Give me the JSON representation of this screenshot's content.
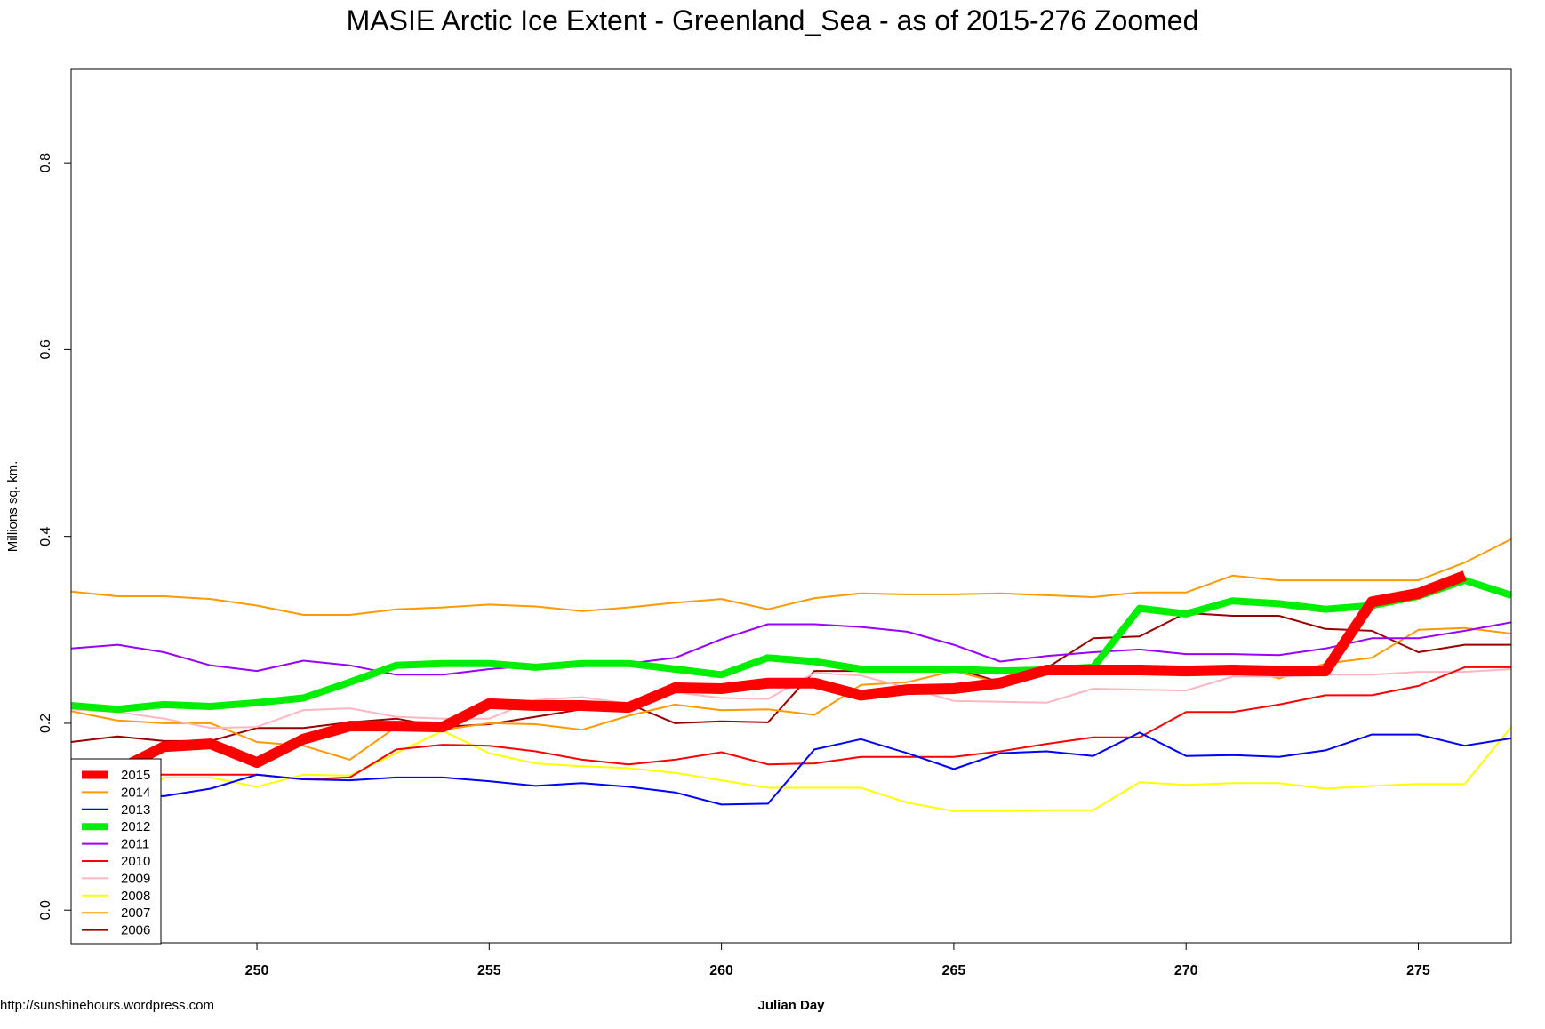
{
  "credit": "http://sunshinehours.wordpress.com",
  "chart_data": {
    "type": "line",
    "title": "MASIE Arctic Ice Extent - Greenland_Sea - as of 2015-276 Zoomed",
    "xlabel": "Julian Day",
    "ylabel": "Millions sq. km.",
    "xlim": [
      246,
      277
    ],
    "ylim": [
      -0.035,
      0.9
    ],
    "x_ticks": [
      250,
      255,
      260,
      265,
      270,
      275
    ],
    "x_tick_labels": [
      "250",
      "255",
      "260",
      "265",
      "270",
      "275"
    ],
    "y_ticks": [
      0.0,
      0.2,
      0.4,
      0.6,
      0.8
    ],
    "y_tick_labels": [
      "0.0",
      "0.2",
      "0.4",
      "0.6",
      "0.8"
    ],
    "grid": false,
    "legend_position": "bottom-left",
    "x": [
      246,
      247,
      248,
      249,
      250,
      251,
      252,
      253,
      254,
      255,
      256,
      257,
      258,
      259,
      260,
      261,
      262,
      263,
      264,
      265,
      266,
      267,
      268,
      269,
      270,
      271,
      272,
      273,
      274,
      275,
      276,
      277
    ],
    "series": [
      {
        "name": "2015",
        "color": "#ff0000",
        "width": 12,
        "values": [
          0.156,
          0.15,
          0.175,
          0.178,
          0.158,
          0.183,
          0.197,
          0.197,
          0.196,
          0.221,
          0.219,
          0.219,
          0.217,
          0.238,
          0.237,
          0.243,
          0.243,
          0.23,
          0.236,
          0.237,
          0.243,
          0.257,
          0.257,
          0.257,
          0.256,
          0.257,
          0.256,
          0.256,
          0.33,
          0.339,
          0.358,
          null
        ]
      },
      {
        "name": "2014",
        "color": "#ff9900",
        "width": 2,
        "values": [
          0.341,
          0.336,
          0.336,
          0.333,
          0.326,
          0.316,
          0.316,
          0.322,
          0.324,
          0.327,
          0.325,
          0.32,
          0.324,
          0.329,
          0.333,
          0.322,
          0.334,
          0.339,
          0.338,
          0.338,
          0.339,
          0.337,
          0.335,
          0.34,
          0.34,
          0.358,
          0.353,
          0.353,
          0.353,
          0.353,
          0.372,
          0.397
        ]
      },
      {
        "name": "2013",
        "color": "#0000ff",
        "width": 2,
        "values": [
          0.126,
          0.122,
          0.122,
          0.13,
          0.145,
          0.14,
          0.139,
          0.142,
          0.142,
          0.138,
          0.133,
          0.136,
          0.132,
          0.126,
          0.113,
          0.114,
          0.172,
          0.183,
          0.168,
          0.151,
          0.168,
          0.17,
          0.165,
          0.19,
          0.165,
          0.166,
          0.164,
          0.171,
          0.188,
          0.188,
          0.176,
          0.184
        ]
      },
      {
        "name": "2012",
        "color": "#00ee00",
        "width": 8,
        "values": [
          0.219,
          0.215,
          0.22,
          0.218,
          0.222,
          0.227,
          0.244,
          0.262,
          0.264,
          0.264,
          0.26,
          0.264,
          0.264,
          0.258,
          0.252,
          0.27,
          0.266,
          0.258,
          0.258,
          0.258,
          0.256,
          0.257,
          0.26,
          0.323,
          0.317,
          0.331,
          0.328,
          0.322,
          0.326,
          0.336,
          0.353,
          0.337
        ]
      },
      {
        "name": "2011",
        "color": "#9900ff",
        "width": 2,
        "values": [
          0.28,
          0.284,
          0.276,
          0.262,
          0.256,
          0.267,
          0.262,
          0.252,
          0.252,
          0.258,
          0.262,
          0.261,
          0.264,
          0.27,
          0.29,
          0.306,
          0.306,
          0.303,
          0.298,
          0.284,
          0.266,
          0.272,
          0.276,
          0.279,
          0.274,
          0.274,
          0.273,
          0.28,
          0.291,
          0.291,
          0.299,
          0.308
        ]
      },
      {
        "name": "2010",
        "color": "#ff0000",
        "width": 2,
        "values": [
          0.148,
          0.146,
          0.145,
          0.145,
          0.145,
          0.14,
          0.142,
          0.172,
          0.177,
          0.176,
          0.17,
          0.161,
          0.156,
          0.161,
          0.169,
          0.156,
          0.157,
          0.164,
          0.164,
          0.164,
          0.17,
          0.178,
          0.185,
          0.185,
          0.212,
          0.212,
          0.22,
          0.23,
          0.23,
          0.24,
          0.26,
          0.26
        ]
      },
      {
        "name": "2009",
        "color": "#ffb6c1",
        "width": 2,
        "values": [
          0.215,
          0.212,
          0.205,
          0.195,
          0.196,
          0.214,
          0.216,
          0.207,
          0.205,
          0.205,
          0.225,
          0.228,
          0.221,
          0.233,
          0.227,
          0.226,
          0.254,
          0.251,
          0.238,
          0.224,
          0.223,
          0.222,
          0.237,
          0.236,
          0.235,
          0.25,
          0.25,
          0.252,
          0.252,
          0.255,
          0.255,
          0.258
        ]
      },
      {
        "name": "2008",
        "color": "#ffff00",
        "width": 2,
        "values": [
          0.115,
          0.1,
          0.142,
          0.142,
          0.132,
          0.145,
          0.144,
          0.168,
          0.192,
          0.168,
          0.157,
          0.154,
          0.152,
          0.147,
          0.139,
          0.131,
          0.131,
          0.131,
          0.115,
          0.106,
          0.106,
          0.107,
          0.107,
          0.137,
          0.134,
          0.136,
          0.136,
          0.13,
          0.133,
          0.135,
          0.135,
          0.196
        ]
      },
      {
        "name": "2007",
        "color": "#ff9900",
        "width": 2,
        "values": [
          0.213,
          0.203,
          0.2,
          0.2,
          0.18,
          0.176,
          0.161,
          0.196,
          0.193,
          0.2,
          0.199,
          0.193,
          0.208,
          0.22,
          0.214,
          0.215,
          0.209,
          0.241,
          0.244,
          0.256,
          0.243,
          0.257,
          0.262,
          0.26,
          0.259,
          0.26,
          0.248,
          0.264,
          0.27,
          0.3,
          0.302,
          0.296
        ]
      },
      {
        "name": "2006",
        "color": "#990000",
        "width": 2,
        "values": [
          0.18,
          0.186,
          0.181,
          0.181,
          0.195,
          0.195,
          0.201,
          0.205,
          0.196,
          0.199,
          0.207,
          0.215,
          0.221,
          0.2,
          0.202,
          0.201,
          0.256,
          0.256,
          0.256,
          0.259,
          0.244,
          0.259,
          0.291,
          0.293,
          0.318,
          0.315,
          0.315,
          0.301,
          0.299,
          0.276,
          0.284,
          0.284
        ]
      }
    ]
  }
}
